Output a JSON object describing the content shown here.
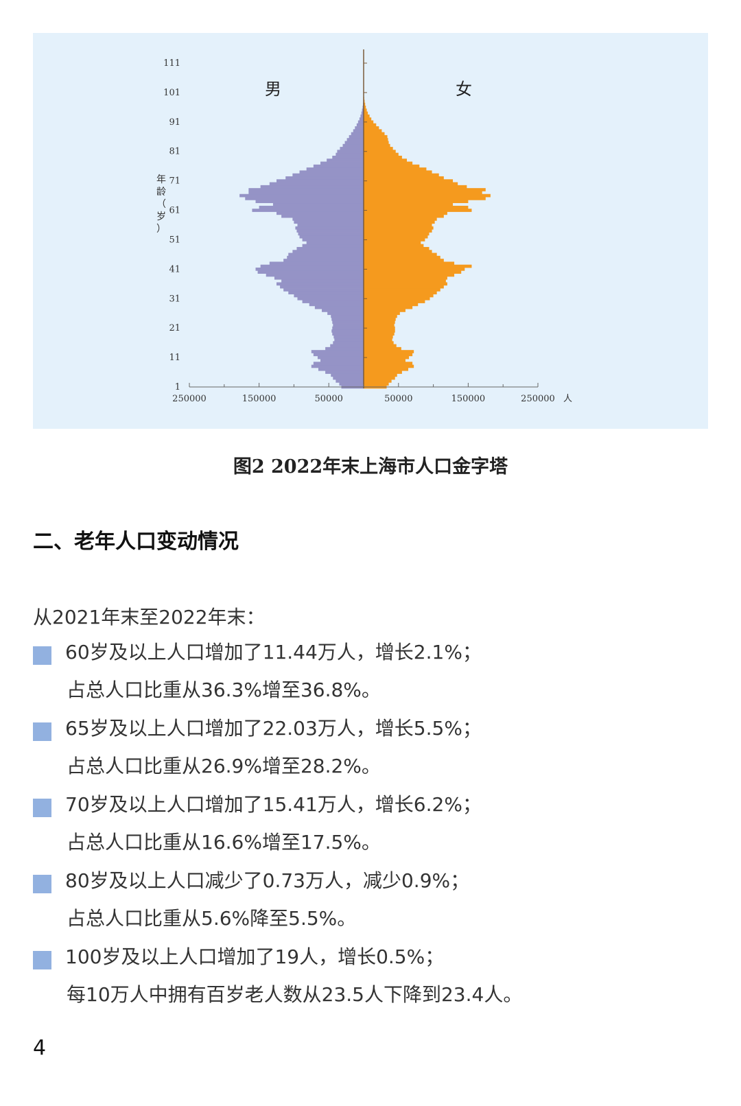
{
  "chart_data": {
    "type": "bar",
    "orientation": "horizontal-population-pyramid",
    "left_label": "男",
    "right_label": "女",
    "y_axis_label": "年龄（岁）",
    "x_unit": "人",
    "y_ticks": [
      "1",
      "11",
      "21",
      "31",
      "41",
      "51",
      "61",
      "71",
      "81",
      "91",
      "101",
      "111"
    ],
    "x_tick_labels": [
      "250000",
      "150000",
      "50000",
      "50000",
      "150000",
      "250000"
    ],
    "x_tick_values": [
      -250000,
      -150000,
      -50000,
      50000,
      150000,
      250000
    ],
    "xlim": [
      -250000,
      250000
    ],
    "ages": [
      1,
      2,
      3,
      4,
      5,
      6,
      7,
      8,
      9,
      10,
      11,
      12,
      13,
      14,
      15,
      16,
      17,
      18,
      19,
      20,
      21,
      22,
      23,
      24,
      25,
      26,
      27,
      28,
      29,
      30,
      31,
      32,
      33,
      34,
      35,
      36,
      37,
      38,
      39,
      40,
      41,
      42,
      43,
      44,
      45,
      46,
      47,
      48,
      49,
      50,
      51,
      52,
      53,
      54,
      55,
      56,
      57,
      58,
      59,
      60,
      61,
      62,
      63,
      64,
      65,
      66,
      67,
      68,
      69,
      70,
      71,
      72,
      73,
      74,
      75,
      76,
      77,
      78,
      79,
      80,
      81,
      82,
      83,
      84,
      85,
      86,
      87,
      88,
      89,
      90,
      91,
      92,
      93,
      94,
      95,
      96,
      97,
      98,
      99,
      100,
      101,
      102,
      103
    ],
    "series": [
      {
        "name": "男",
        "color": "#9593c6",
        "values": [
          32000,
          35000,
          40000,
          44000,
          47000,
          55000,
          65000,
          75000,
          72000,
          62000,
          66000,
          72000,
          75000,
          55000,
          48000,
          44000,
          42000,
          43000,
          45000,
          46000,
          45000,
          44000,
          45000,
          46000,
          47000,
          52000,
          60000,
          70000,
          78000,
          88000,
          95000,
          100000,
          108000,
          115000,
          120000,
          125000,
          118000,
          128000,
          140000,
          152000,
          155000,
          148000,
          135000,
          115000,
          110000,
          108000,
          102000,
          96000,
          88000,
          82000,
          88000,
          92000,
          94000,
          96000,
          98000,
          95000,
          100000,
          102000,
          118000,
          125000,
          160000,
          150000,
          130000,
          155000,
          170000,
          178000,
          165000,
          165000,
          148000,
          135000,
          125000,
          112000,
          102000,
          92000,
          82000,
          72000,
          62000,
          53000,
          45000,
          40000,
          38000,
          34000,
          30000,
          27000,
          24000,
          21000,
          18000,
          15000,
          12500,
          10000,
          8000,
          6000,
          4500,
          3200,
          2300,
          1500,
          1000,
          600,
          400,
          200,
          120,
          60,
          30
        ]
      },
      {
        "name": "女",
        "color": "#f59a1e",
        "values": [
          33000,
          36000,
          40000,
          45000,
          48000,
          55000,
          64000,
          72000,
          70000,
          60000,
          65000,
          70000,
          72000,
          54000,
          47000,
          43000,
          41000,
          42000,
          44000,
          45000,
          45000,
          44000,
          45000,
          46000,
          48000,
          52000,
          60000,
          70000,
          78000,
          88000,
          95000,
          100000,
          105000,
          110000,
          115000,
          120000,
          118000,
          120000,
          130000,
          140000,
          145000,
          155000,
          130000,
          115000,
          110000,
          105000,
          98000,
          94000,
          86000,
          82000,
          88000,
          92000,
          94000,
          98000,
          100000,
          98000,
          102000,
          105000,
          115000,
          120000,
          155000,
          150000,
          128000,
          150000,
          175000,
          182000,
          170000,
          175000,
          148000,
          135000,
          128000,
          115000,
          108000,
          98000,
          90000,
          80000,
          70000,
          62000,
          55000,
          50000,
          46000,
          42000,
          38000,
          36000,
          35000,
          34000,
          30000,
          26000,
          22000,
          18000,
          14000,
          11000,
          8500,
          6000,
          4500,
          3200,
          2200,
          1400,
          800,
          450,
          250,
          120,
          50
        ]
      }
    ]
  },
  "caption": "图2  2022年末上海市人口金字塔",
  "section_title": "二、老年人口变动情况",
  "intro": "从2021年末至2022年末：",
  "bullets": [
    {
      "line1": "60岁及以上人口增加了11.44万人，增长2.1%；",
      "line2": "占总人口比重从36.3%增至36.8%。"
    },
    {
      "line1": "65岁及以上人口增加了22.03万人，增长5.5%；",
      "line2": "占总人口比重从26.9%增至28.2%。"
    },
    {
      "line1": "70岁及以上人口增加了15.41万人，增长6.2%；",
      "line2": "占总人口比重从16.6%增至17.5%。"
    },
    {
      "line1": "80岁及以上人口减少了0.73万人，减少0.9%；",
      "line2": "占总人口比重从5.6%降至5.5%。"
    },
    {
      "line1": "100岁及以上人口增加了19人，增长0.5%；",
      "line2": "每10万人中拥有百岁老人数从23.5人下降到23.4人。"
    }
  ],
  "page_number": "4"
}
